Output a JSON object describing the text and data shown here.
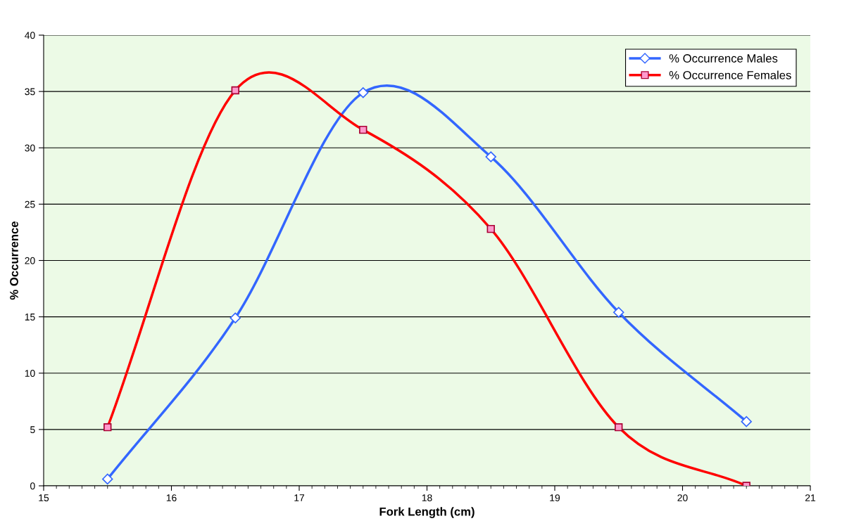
{
  "chart_data": {
    "type": "line",
    "xlabel": "Fork Length (cm)",
    "ylabel": "% Occurrence",
    "x": [
      15.5,
      16.5,
      17.5,
      18.5,
      19.5,
      20.5
    ],
    "series": [
      {
        "name": "% Occurrence Males",
        "color": "#3366ff",
        "marker": "diamond",
        "values": [
          0.6,
          14.9,
          34.9,
          29.2,
          15.4,
          5.7
        ]
      },
      {
        "name": "% Occurrence Females",
        "color": "#ff0000",
        "marker": "square",
        "values": [
          5.2,
          35.1,
          31.6,
          22.8,
          5.2,
          0
        ]
      }
    ],
    "xlim": [
      15,
      21
    ],
    "xticks": [
      15,
      16,
      17,
      18,
      19,
      20,
      21
    ],
    "ylim": [
      0,
      40
    ],
    "yticks": [
      0,
      5,
      10,
      15,
      20,
      25,
      30,
      35,
      40
    ],
    "grid": "y",
    "legend": "top right",
    "line_style": "solid"
  }
}
